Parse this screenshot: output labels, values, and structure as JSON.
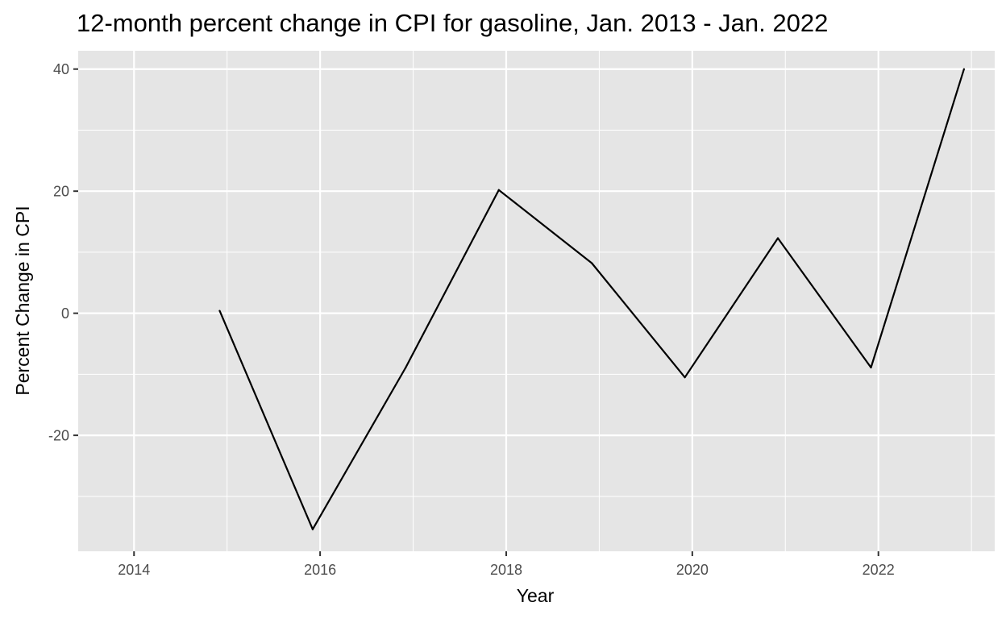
{
  "chart_data": {
    "type": "line",
    "title": "12-month percent change in CPI for gasoline, Jan. 2013 - Jan. 2022",
    "xlabel": "Year",
    "ylabel": "Percent Change in CPI",
    "x_ticks": [
      2014,
      2016,
      2018,
      2020,
      2022
    ],
    "x_tick_labels": [
      "2014",
      "2016",
      "2018",
      "2020",
      "2022"
    ],
    "y_ticks": [
      -20,
      0,
      20,
      40
    ],
    "y_tick_labels": [
      "-20",
      "0",
      "20",
      "40"
    ],
    "xlim": [
      2013.4,
      2023.25
    ],
    "ylim": [
      -39,
      43
    ],
    "grid": true,
    "background": "#e5e5e5",
    "grid_color": "#ffffff",
    "line_color": "#000000",
    "series": [
      {
        "x": [
          2014.92,
          2015.92,
          2016.92,
          2017.92,
          2018.92,
          2019.92,
          2020.92,
          2021.92,
          2022.92
        ],
        "y": [
          0.4,
          -35.4,
          -8.9,
          20.2,
          8.2,
          -10.5,
          12.3,
          -8.9,
          40.0
        ]
      }
    ]
  }
}
